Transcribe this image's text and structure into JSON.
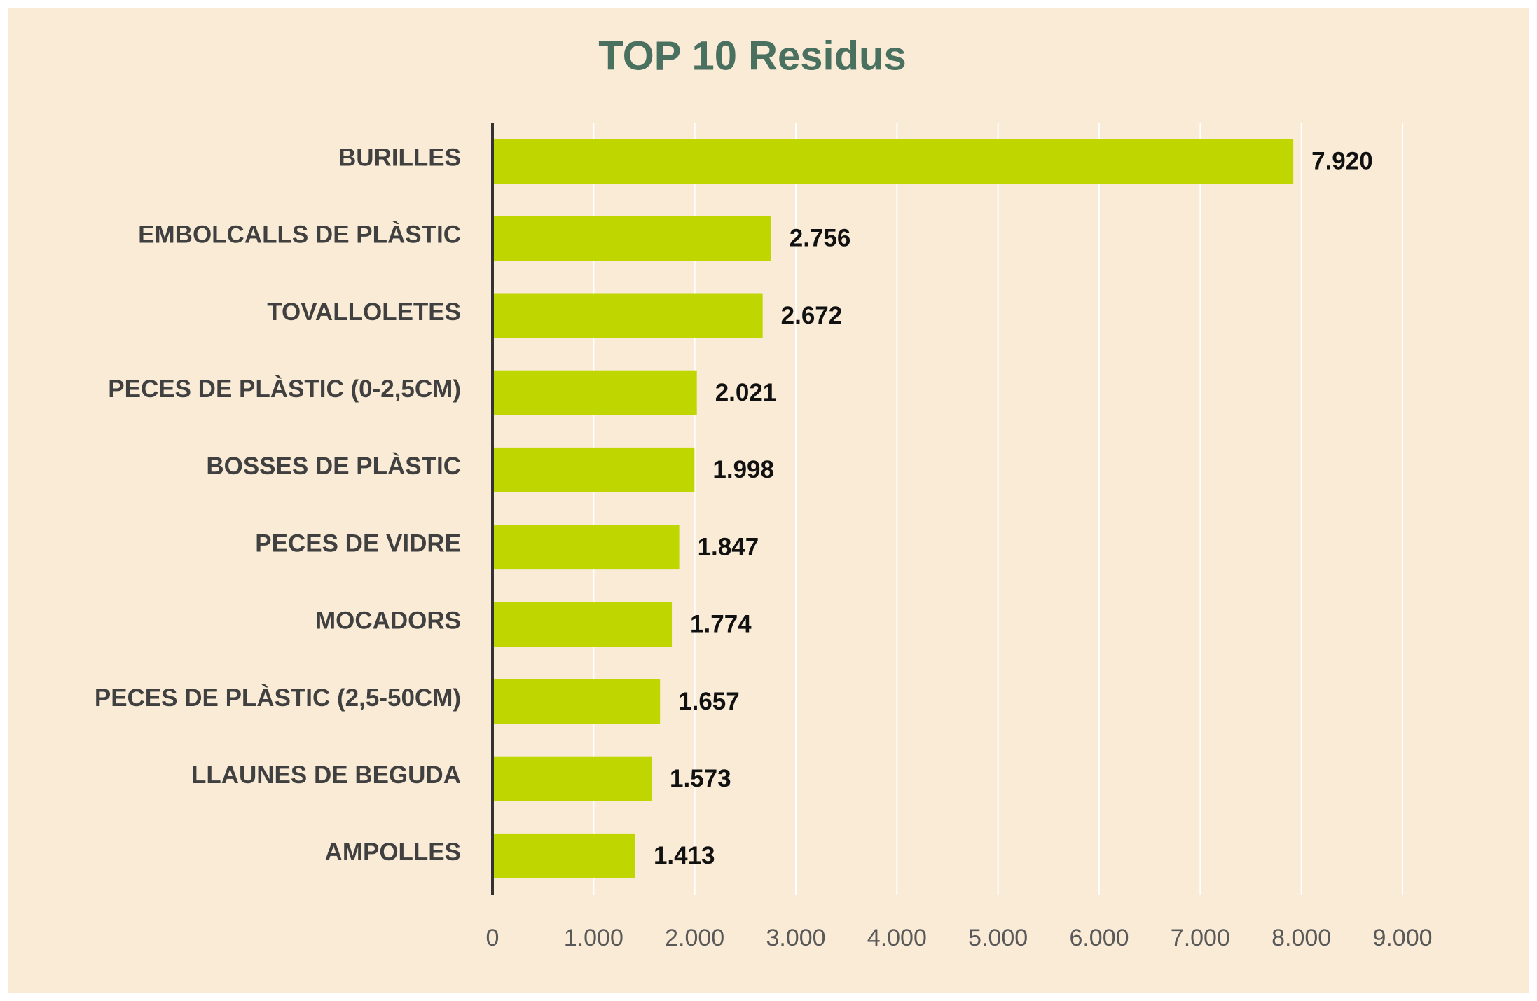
{
  "chart_data": {
    "type": "bar",
    "orientation": "horizontal",
    "title": "TOP 10 Residus",
    "categories": [
      "BURILLES",
      "EMBOLCALLS DE PLÀSTIC",
      "TOVALLOLETES",
      "PECES DE PLÀSTIC (0-2,5CM)",
      "BOSSES DE PLÀSTIC",
      "PECES DE VIDRE",
      "MOCADORS",
      "PECES DE PLÀSTIC (2,5-50CM)",
      "LLAUNES DE BEGUDA",
      "AMPOLLES"
    ],
    "values": [
      7920,
      2756,
      2672,
      2021,
      1998,
      1847,
      1774,
      1657,
      1573,
      1413
    ],
    "value_labels": [
      "7.920",
      "2.756",
      "2.672",
      "2.021",
      "1.998",
      "1.847",
      "1.774",
      "1.657",
      "1.573",
      "1.413"
    ],
    "color": "#bfd600",
    "xlim": [
      0,
      9000
    ],
    "xticks": [
      0,
      {
        "value": 1000,
        "label": "1.000"
      },
      {
        "value": 2000,
        "label": "2.000"
      },
      {
        "value": 3000,
        "label": "3.000"
      },
      {
        "value": 4000,
        "label": "4.000"
      },
      {
        "value": 5000,
        "label": "5.000"
      },
      {
        "value": 6000,
        "label": "6.000"
      },
      {
        "value": 7000,
        "label": "7.000"
      },
      {
        "value": 8000,
        "label": "8.000"
      },
      {
        "value": 9000,
        "label": "9.000"
      }
    ],
    "grid": true
  }
}
